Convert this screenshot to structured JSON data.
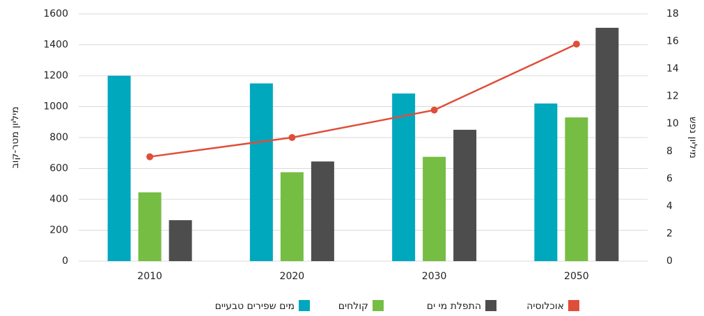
{
  "chart_data": {
    "type": "bar",
    "categories": [
      "2010",
      "2020",
      "2030",
      "2050"
    ],
    "series": [
      {
        "name": "מים שפירים טבעיים",
        "color": "#00a8bd",
        "values": [
          1200,
          1150,
          1085,
          1020
        ]
      },
      {
        "name": "קולחים",
        "color": "#76bd43",
        "values": [
          445,
          575,
          675,
          930
        ]
      },
      {
        "name": "התפלת מי ים",
        "color": "#4d4d4d",
        "values": [
          265,
          645,
          850,
          1510
        ]
      },
      {
        "name": "אוכלוסיה",
        "color": "#e04e39",
        "type": "line",
        "axis": "y2",
        "values": [
          7.6,
          9.0,
          11.0,
          15.8
        ]
      }
    ],
    "ylabel": "מיליון מטר-קוב",
    "y2label": "מיליון נפש",
    "ylim": [
      0,
      1600
    ],
    "yticks": [
      0,
      200,
      400,
      600,
      800,
      1000,
      1200,
      1400,
      1600
    ],
    "y2lim": [
      0,
      18
    ],
    "y2ticks": [
      0,
      2,
      4,
      6,
      8,
      10,
      12,
      14,
      16,
      18
    ],
    "grid": true,
    "legend": "bottom"
  }
}
